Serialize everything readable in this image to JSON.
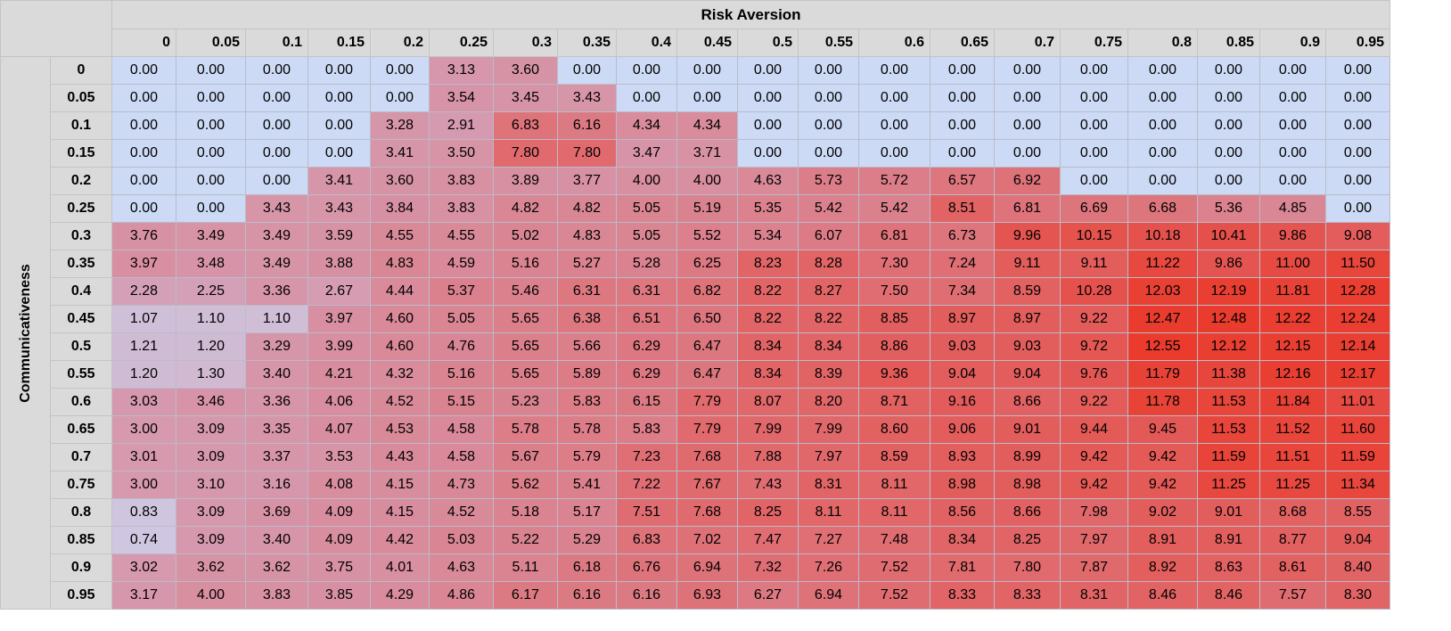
{
  "chart_data": {
    "type": "heatmap",
    "title": "",
    "xlabel": "Risk Aversion",
    "ylabel": "Communicativeness",
    "x": [
      "0",
      "0.05",
      "0.1",
      "0.15",
      "0.2",
      "0.25",
      "0.3",
      "0.35",
      "0.4",
      "0.45",
      "0.5",
      "0.55",
      "0.6",
      "0.65",
      "0.7",
      "0.75",
      "0.8",
      "0.85",
      "0.9",
      "0.95"
    ],
    "y": [
      "0",
      "0.05",
      "0.1",
      "0.15",
      "0.2",
      "0.25",
      "0.3",
      "0.35",
      "0.4",
      "0.45",
      "0.5",
      "0.55",
      "0.6",
      "0.65",
      "0.7",
      "0.75",
      "0.8",
      "0.85",
      "0.9",
      "0.95"
    ],
    "values": [
      [
        "0.00",
        "0.00",
        "0.00",
        "0.00",
        "0.00",
        "3.13",
        "3.60",
        "0.00",
        "0.00",
        "0.00",
        "0.00",
        "0.00",
        "0.00",
        "0.00",
        "0.00",
        "0.00",
        "0.00",
        "0.00",
        "0.00",
        "0.00"
      ],
      [
        "0.00",
        "0.00",
        "0.00",
        "0.00",
        "0.00",
        "3.54",
        "3.45",
        "3.43",
        "0.00",
        "0.00",
        "0.00",
        "0.00",
        "0.00",
        "0.00",
        "0.00",
        "0.00",
        "0.00",
        "0.00",
        "0.00",
        "0.00"
      ],
      [
        "0.00",
        "0.00",
        "0.00",
        "0.00",
        "3.28",
        "2.91",
        "6.83",
        "6.16",
        "4.34",
        "4.34",
        "0.00",
        "0.00",
        "0.00",
        "0.00",
        "0.00",
        "0.00",
        "0.00",
        "0.00",
        "0.00",
        "0.00"
      ],
      [
        "0.00",
        "0.00",
        "0.00",
        "0.00",
        "3.41",
        "3.50",
        "7.80",
        "7.80",
        "3.47",
        "3.71",
        "0.00",
        "0.00",
        "0.00",
        "0.00",
        "0.00",
        "0.00",
        "0.00",
        "0.00",
        "0.00",
        "0.00"
      ],
      [
        "0.00",
        "0.00",
        "0.00",
        "3.41",
        "3.60",
        "3.83",
        "3.89",
        "3.77",
        "4.00",
        "4.00",
        "4.63",
        "5.73",
        "5.72",
        "6.57",
        "6.92",
        "0.00",
        "0.00",
        "0.00",
        "0.00",
        "0.00"
      ],
      [
        "0.00",
        "0.00",
        "3.43",
        "3.43",
        "3.84",
        "3.83",
        "4.82",
        "4.82",
        "5.05",
        "5.19",
        "5.35",
        "5.42",
        "5.42",
        "8.51",
        "6.81",
        "6.69",
        "6.68",
        "5.36",
        "4.85",
        "0.00"
      ],
      [
        "3.76",
        "3.49",
        "3.49",
        "3.59",
        "4.55",
        "4.55",
        "5.02",
        "4.83",
        "5.05",
        "5.52",
        "5.34",
        "6.07",
        "6.81",
        "6.73",
        "9.96",
        "10.15",
        "10.18",
        "10.41",
        "9.86",
        "9.08"
      ],
      [
        "3.97",
        "3.48",
        "3.49",
        "3.88",
        "4.83",
        "4.59",
        "5.16",
        "5.27",
        "5.28",
        "6.25",
        "8.23",
        "8.28",
        "7.30",
        "7.24",
        "9.11",
        "9.11",
        "11.22",
        "9.86",
        "11.00",
        "11.50"
      ],
      [
        "2.28",
        "2.25",
        "3.36",
        "2.67",
        "4.44",
        "5.37",
        "5.46",
        "6.31",
        "6.31",
        "6.82",
        "8.22",
        "8.27",
        "7.50",
        "7.34",
        "8.59",
        "10.28",
        "12.03",
        "12.19",
        "11.81",
        "12.28"
      ],
      [
        "1.07",
        "1.10",
        "1.10",
        "3.97",
        "4.60",
        "5.05",
        "5.65",
        "6.38",
        "6.51",
        "6.50",
        "8.22",
        "8.22",
        "8.85",
        "8.97",
        "8.97",
        "9.22",
        "12.47",
        "12.48",
        "12.22",
        "12.24"
      ],
      [
        "1.21",
        "1.20",
        "3.29",
        "3.99",
        "4.60",
        "4.76",
        "5.65",
        "5.66",
        "6.29",
        "6.47",
        "8.34",
        "8.34",
        "8.86",
        "9.03",
        "9.03",
        "9.72",
        "12.55",
        "12.12",
        "12.15",
        "12.14"
      ],
      [
        "1.20",
        "1.30",
        "3.40",
        "4.21",
        "4.32",
        "5.16",
        "5.65",
        "5.89",
        "6.29",
        "6.47",
        "8.34",
        "8.39",
        "9.36",
        "9.04",
        "9.04",
        "9.76",
        "11.79",
        "11.38",
        "12.16",
        "12.17"
      ],
      [
        "3.03",
        "3.46",
        "3.36",
        "4.06",
        "4.52",
        "5.15",
        "5.23",
        "5.83",
        "6.15",
        "7.79",
        "8.07",
        "8.20",
        "8.71",
        "9.16",
        "8.66",
        "9.22",
        "11.78",
        "11.53",
        "11.84",
        "11.01"
      ],
      [
        "3.00",
        "3.09",
        "3.35",
        "4.07",
        "4.53",
        "4.58",
        "5.78",
        "5.78",
        "5.83",
        "7.79",
        "7.99",
        "7.99",
        "8.60",
        "9.06",
        "9.01",
        "9.44",
        "9.45",
        "11.53",
        "11.52",
        "11.60"
      ],
      [
        "3.01",
        "3.09",
        "3.37",
        "3.53",
        "4.43",
        "4.58",
        "5.67",
        "5.79",
        "7.23",
        "7.68",
        "7.88",
        "7.97",
        "8.59",
        "8.93",
        "8.99",
        "9.42",
        "9.42",
        "11.59",
        "11.51",
        "11.59"
      ],
      [
        "3.00",
        "3.10",
        "3.16",
        "4.08",
        "4.15",
        "4.73",
        "5.62",
        "5.41",
        "7.22",
        "7.67",
        "7.43",
        "8.31",
        "8.11",
        "8.98",
        "8.98",
        "9.42",
        "9.42",
        "11.25",
        "11.25",
        "11.34"
      ],
      [
        "0.83",
        "3.09",
        "3.69",
        "4.09",
        "4.15",
        "4.52",
        "5.18",
        "5.17",
        "7.51",
        "7.68",
        "8.25",
        "8.11",
        "8.11",
        "8.56",
        "8.66",
        "7.98",
        "9.02",
        "9.01",
        "8.68",
        "8.55"
      ],
      [
        "0.74",
        "3.09",
        "3.40",
        "4.09",
        "4.42",
        "5.03",
        "5.22",
        "5.29",
        "6.83",
        "7.02",
        "7.47",
        "7.27",
        "7.48",
        "8.34",
        "8.25",
        "7.97",
        "8.91",
        "8.91",
        "8.77",
        "9.04"
      ],
      [
        "3.02",
        "3.62",
        "3.62",
        "3.75",
        "4.01",
        "4.63",
        "5.11",
        "6.18",
        "6.76",
        "6.94",
        "7.32",
        "7.26",
        "7.52",
        "7.81",
        "7.80",
        "7.87",
        "8.92",
        "8.63",
        "8.61",
        "8.40"
      ],
      [
        "3.17",
        "4.00",
        "3.83",
        "3.85",
        "4.29",
        "4.86",
        "6.17",
        "6.16",
        "6.16",
        "6.93",
        "6.27",
        "6.94",
        "7.52",
        "8.33",
        "8.33",
        "8.31",
        "8.46",
        "8.46",
        "7.57",
        "8.30"
      ]
    ],
    "vmin": 0,
    "vmax": 12.55,
    "colors": {
      "low": "#ccdaf5",
      "mid": "#d4a0b8",
      "high": "#ea3b2d",
      "header_bg": "#dadada",
      "grid": "#c4c4c4"
    },
    "grid": true,
    "legend": "none"
  }
}
